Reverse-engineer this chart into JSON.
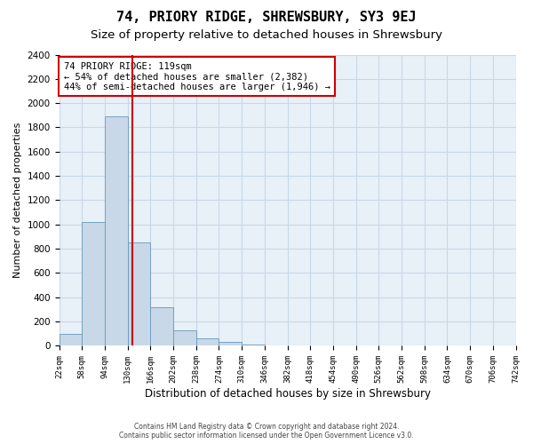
{
  "title": "74, PRIORY RIDGE, SHREWSBURY, SY3 9EJ",
  "subtitle": "Size of property relative to detached houses in Shrewsbury",
  "xlabel": "Distribution of detached houses by size in Shrewsbury",
  "ylabel": "Number of detached properties",
  "bar_values": [
    100,
    1020,
    1890,
    850,
    320,
    130,
    60,
    30,
    10,
    0,
    0,
    0,
    0,
    0,
    0,
    0,
    0,
    0,
    0,
    0
  ],
  "tick_labels": [
    "22sqm",
    "58sqm",
    "94sqm",
    "130sqm",
    "166sqm",
    "202sqm",
    "238sqm",
    "274sqm",
    "310sqm",
    "346sqm",
    "382sqm",
    "418sqm",
    "454sqm",
    "490sqm",
    "526sqm",
    "562sqm",
    "598sqm",
    "634sqm",
    "670sqm",
    "706sqm",
    "742sqm"
  ],
  "bar_color": "#c8d8e8",
  "bar_edge_color": "#6699bb",
  "vline_color": "#cc0000",
  "annotation_line1": "74 PRIORY RIDGE: 119sqm",
  "annotation_line2": "← 54% of detached houses are smaller (2,382)",
  "annotation_line3": "44% of semi-detached houses are larger (1,946) →",
  "annotation_box_edge_color": "#cc0000",
  "ylim": [
    0,
    2400
  ],
  "yticks": [
    0,
    200,
    400,
    600,
    800,
    1000,
    1200,
    1400,
    1600,
    1800,
    2000,
    2200,
    2400
  ],
  "grid_color": "#c8d8e8",
  "footer_line1": "Contains HM Land Registry data © Crown copyright and database right 2024.",
  "footer_line2": "Contains public sector information licensed under the Open Government Licence v3.0.",
  "bg_color": "#e8f0f8",
  "bin_sqm": [
    22,
    58,
    94,
    130,
    166,
    202,
    238,
    274,
    310,
    346,
    382,
    418,
    454,
    490,
    526,
    562,
    598,
    634,
    670,
    706,
    742
  ],
  "property_sqm": 119
}
